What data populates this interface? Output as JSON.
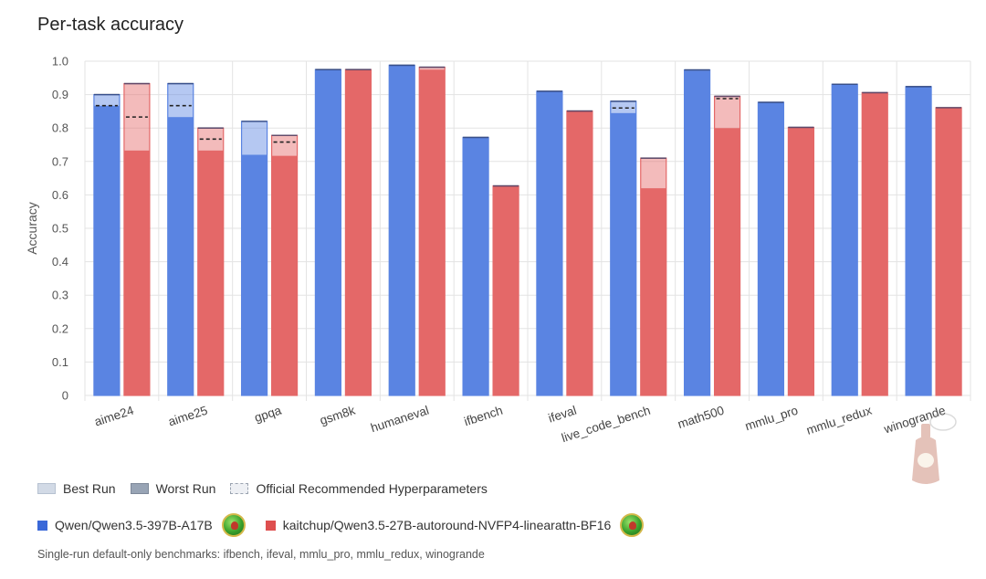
{
  "chart_data": {
    "type": "bar",
    "title": "Per-task accuracy",
    "ylabel": "Accuracy",
    "xlabel": "",
    "ylim": [
      0,
      1.0
    ],
    "yticks": [
      "0",
      "0.1",
      "0.2",
      "0.3",
      "0.4",
      "0.5",
      "0.6",
      "0.7",
      "0.8",
      "0.9",
      "1.0"
    ],
    "grid": true,
    "categories": [
      "aime24",
      "aime25",
      "gpqa",
      "gsm8k",
      "humaneval",
      "ifbench",
      "ifeval",
      "live_code_bench",
      "math500",
      "mmlu_pro",
      "mmlu_redux",
      "winogrande"
    ],
    "series": [
      {
        "name": "Qwen/Qwen3.5-397B-A17B",
        "color": "#5a84e2",
        "best": [
          0.9,
          0.933,
          0.82,
          0.975,
          0.988,
          0.772,
          0.91,
          0.88,
          0.974,
          0.877,
          0.931,
          0.924
        ],
        "worst": [
          0.867,
          0.833,
          0.72,
          0.975,
          0.988,
          0.772,
          0.91,
          0.845,
          0.972,
          0.877,
          0.931,
          0.924
        ],
        "official": [
          0.867,
          0.867,
          null,
          null,
          null,
          null,
          null,
          0.86,
          null,
          null,
          null,
          null
        ]
      },
      {
        "name": "kaitchup/Qwen3.5-27B-autoround-NVFP4-linearattn-BF16",
        "color": "#e46868",
        "best": [
          0.933,
          0.8,
          0.778,
          0.975,
          0.982,
          0.627,
          0.851,
          0.71,
          0.895,
          0.802,
          0.906,
          0.861
        ],
        "worst": [
          0.733,
          0.733,
          0.717,
          0.975,
          0.975,
          0.627,
          0.851,
          0.62,
          0.8,
          0.802,
          0.906,
          0.861
        ],
        "official": [
          0.833,
          0.767,
          0.758,
          null,
          null,
          null,
          null,
          null,
          0.888,
          null,
          null,
          null
        ]
      }
    ]
  },
  "legend": {
    "best_run": "Best Run",
    "worst_run": "Worst Run",
    "official": "Official Recommended Hyperparameters"
  },
  "footnote": "Single-run default-only benchmarks: ifbench, ifeval, mmlu_pro, mmlu_redux, winogrande"
}
